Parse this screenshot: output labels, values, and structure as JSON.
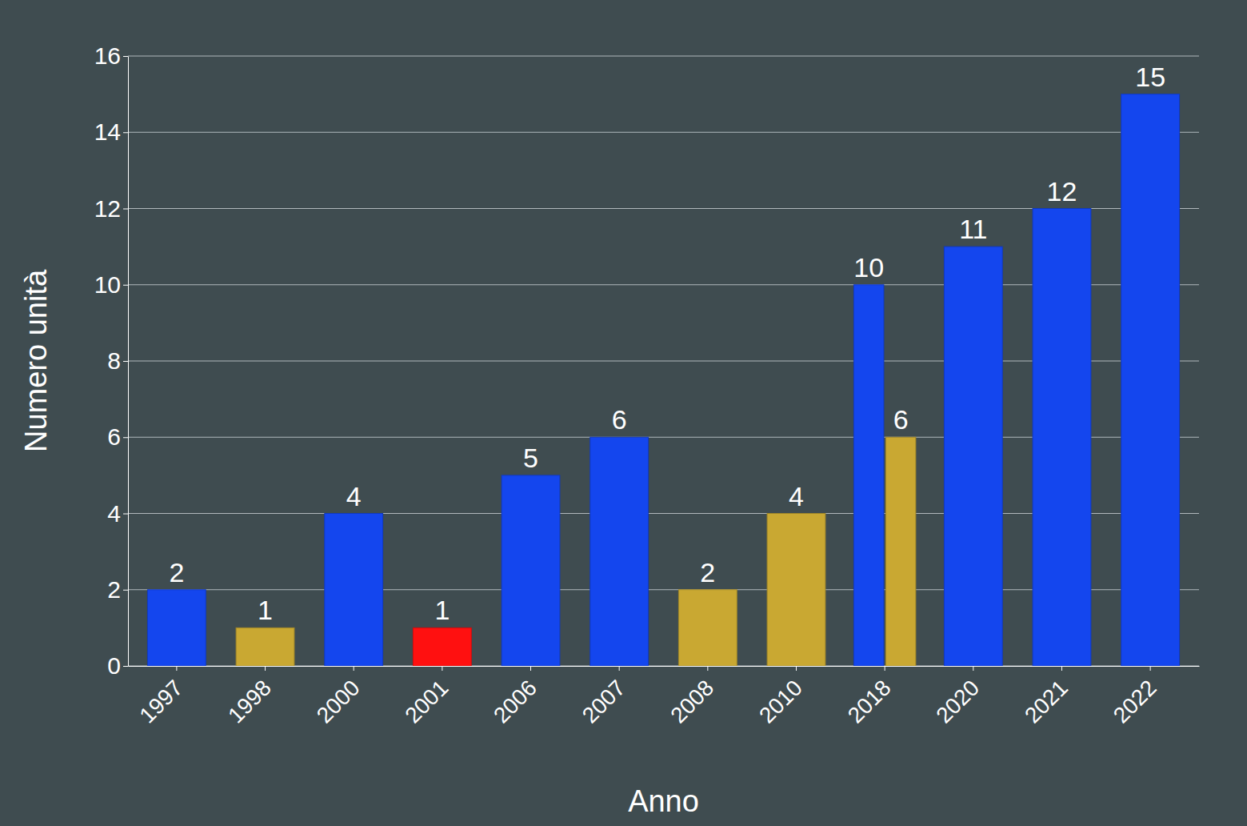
{
  "chart_data": {
    "type": "bar",
    "x_label": "Anno",
    "y_label": "Numero unità",
    "categories": [
      "1997",
      "1998",
      "2000",
      "2001",
      "2006",
      "2007",
      "2008",
      "2010",
      "2018",
      "2020",
      "2021",
      "2022"
    ],
    "series": [
      {
        "color": "#1446ee",
        "values": [
          2,
          null,
          4,
          null,
          5,
          6,
          null,
          null,
          10,
          11,
          12,
          15
        ]
      },
      {
        "color": "#c9a832",
        "values": [
          null,
          1,
          null,
          null,
          null,
          null,
          2,
          4,
          6,
          null,
          null,
          null
        ]
      },
      {
        "color": "#ff1010",
        "values": [
          null,
          null,
          null,
          1,
          null,
          null,
          null,
          null,
          null,
          null,
          null,
          null
        ]
      }
    ],
    "ylim": [
      0,
      16
    ],
    "yticks": [
      0,
      2,
      4,
      6,
      8,
      10,
      12,
      14,
      16
    ],
    "grid": true,
    "data_labels": true
  }
}
